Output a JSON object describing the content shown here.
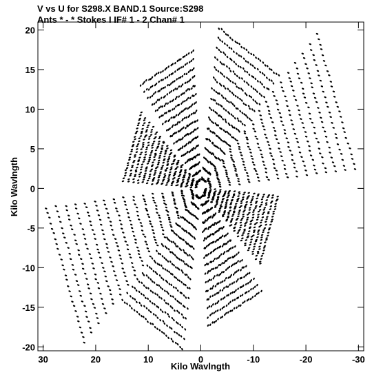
{
  "chart_data": {
    "type": "scatter",
    "title_line1": "V vs U for S298.X BAND.1   Source:S298",
    "title_line2": "Ants * - *     Stokes I   IF# 1 - 2   Chan# 1",
    "xlabel": "Kilo Wavlngth",
    "ylabel": "Kilo Wavlngth",
    "xlim": [
      31,
      -31
    ],
    "ylim": [
      -20.5,
      21
    ],
    "xticks": [
      30,
      20,
      10,
      0,
      -10,
      -20,
      -30
    ],
    "yticks": [
      20,
      15,
      10,
      5,
      0,
      -5,
      -10,
      -15,
      -20
    ],
    "xtick_labels": [
      "30",
      "20",
      "10",
      "0",
      "-10",
      "-20",
      "-30"
    ],
    "ytick_labels": [
      "20",
      "15",
      "10",
      "5",
      "0",
      "-5",
      "-10",
      "-15",
      "-20"
    ],
    "grid": false,
    "uv_arms": [
      {
        "angle_deg": 22,
        "max_radius": 14
      },
      {
        "angle_deg": 67,
        "max_radius": 16.5
      },
      {
        "angle_deg": 118,
        "max_radius": 19.5
      },
      {
        "angle_deg": 157,
        "max_radius": 28
      }
    ],
    "point_color": "#000000"
  }
}
